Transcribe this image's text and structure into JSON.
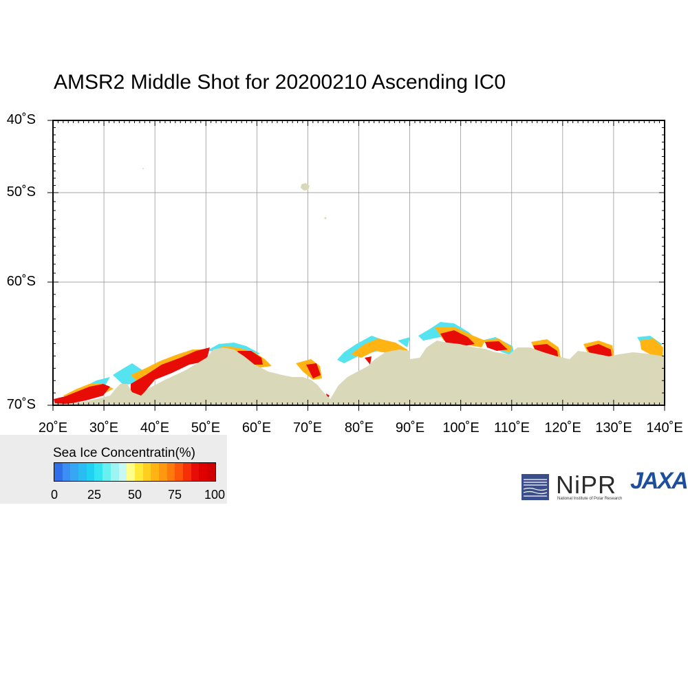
{
  "title": "AMSR2 Middle Shot for 20200210 Ascending IC0",
  "map": {
    "projection": "Mercator",
    "lon_range": [
      20,
      140
    ],
    "lat_range": [
      -70,
      -40
    ],
    "grid": true,
    "land_color": "#d9d8b9",
    "ocean_color": "#ffffff",
    "grid_color": "#888888",
    "lat_labels": [
      "40˚S",
      "50˚S",
      "60˚S",
      "70˚S"
    ],
    "lat_values": [
      -40,
      -50,
      -60,
      -70
    ],
    "lon_labels": [
      "20˚E",
      "30˚E",
      "40˚E",
      "50˚E",
      "60˚E",
      "70˚E",
      "80˚E",
      "90˚E",
      "100˚E",
      "110˚E",
      "120˚E",
      "130˚E",
      "140˚E"
    ],
    "lon_values": [
      20,
      30,
      40,
      50,
      60,
      70,
      80,
      90,
      100,
      110,
      120,
      130,
      140
    ]
  },
  "legend": {
    "title": "Sea Ice Concentratin(%)",
    "min": 0,
    "max": 100,
    "tick_labels": [
      "0",
      "25",
      "50",
      "75",
      "100"
    ],
    "tick_values": [
      0,
      25,
      50,
      75,
      100
    ],
    "colors": [
      "#2f6fe8",
      "#3b8ff2",
      "#36a6f5",
      "#2bbcf3",
      "#20d2f2",
      "#34e4f0",
      "#68eff0",
      "#9cf5f2",
      "#c8f8f4",
      "#ffff8a",
      "#ffea3a",
      "#ffcf1f",
      "#ffb414",
      "#ff9810",
      "#ff7a0c",
      "#ff5508",
      "#f52f06",
      "#e80c06",
      "#e00000",
      "#d10000"
    ]
  },
  "logos": {
    "nipr": {
      "name": "NiPR",
      "subtitle": "National Institute of Polar Research",
      "color": "#3a4e8c",
      "icon": "nipr-icon"
    },
    "jaxa": {
      "name": "JAXA",
      "color": "#1d4f9c",
      "icon": "jaxa-icon"
    }
  }
}
